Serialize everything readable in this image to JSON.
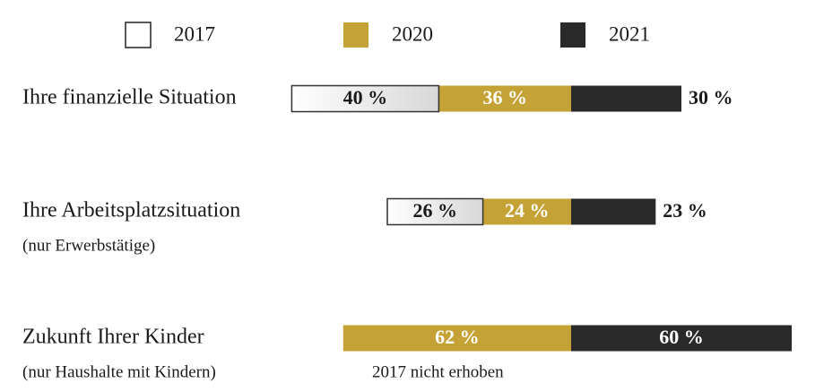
{
  "chart_data": {
    "type": "bar",
    "stacked": true,
    "categories": [
      "Ihre finanzielle Situation",
      "Ihre Arbeitsplatzsituation",
      "Zukunft Ihrer Kinder"
    ],
    "category_notes": [
      null,
      "(nur Erwerbstätige)",
      "(nur Haushalte mit Kindern)"
    ],
    "series": [
      {
        "name": "2017",
        "color": "#ffffff",
        "values": [
          40,
          26,
          null
        ],
        "value_labels": [
          "40 %",
          "26 %",
          null
        ]
      },
      {
        "name": "2020",
        "color": "#c4a235",
        "values": [
          36,
          24,
          62
        ],
        "value_labels": [
          "36 %",
          "24 %",
          "62 %"
        ]
      },
      {
        "name": "2021",
        "color": "#2a2a2a",
        "values": [
          30,
          23,
          60
        ],
        "value_labels": [
          "30 %",
          "23 %",
          "60 %"
        ]
      }
    ],
    "annotation": "2017 nicht erhoben"
  }
}
